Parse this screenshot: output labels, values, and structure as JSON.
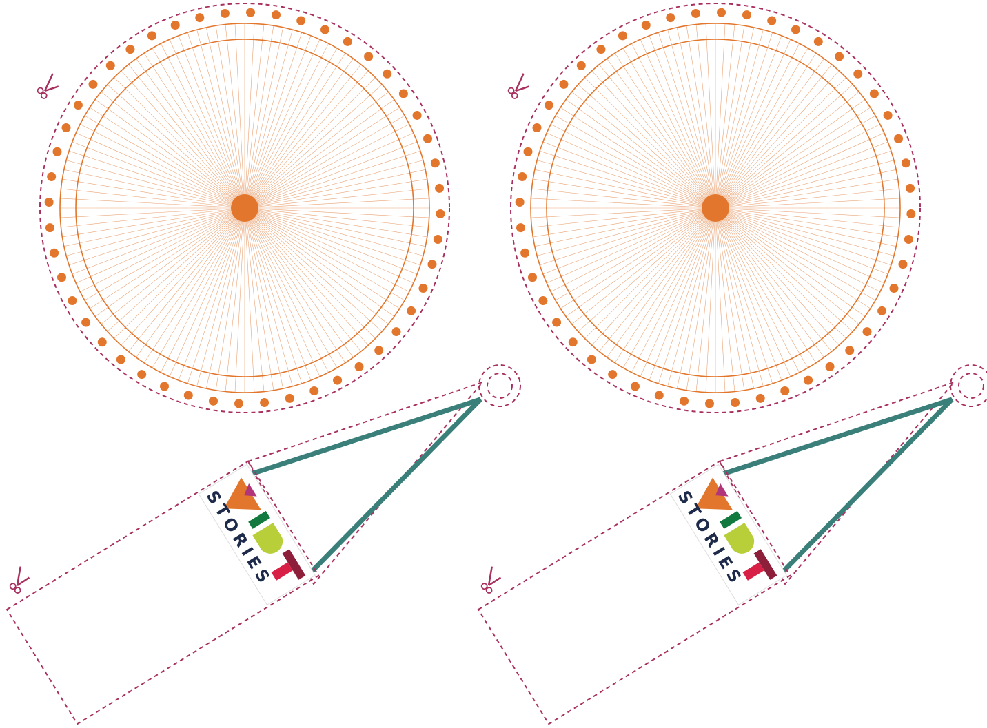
{
  "templates": [
    {
      "logo_text": "STORIES"
    },
    {
      "logo_text": "STORIES"
    }
  ]
}
